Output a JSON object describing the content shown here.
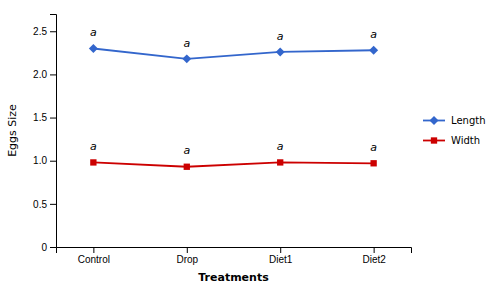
{
  "chart_data": {
    "type": "line",
    "categories": [
      "Control",
      "Drop",
      "Diet1",
      "Diet2"
    ],
    "series": [
      {
        "name": "Length",
        "color": "#3366cc",
        "marker": "diamond",
        "values": [
          2.3,
          2.18,
          2.26,
          2.28
        ]
      },
      {
        "name": "Width",
        "color": "#cc0000",
        "marker": "square",
        "values": [
          0.98,
          0.93,
          0.98,
          0.97
        ]
      }
    ],
    "annotations": [
      {
        "text": "a",
        "category": "Control",
        "y": 2.42
      },
      {
        "text": "a",
        "category": "Drop",
        "y": 2.3
      },
      {
        "text": "a",
        "category": "Diet1",
        "y": 2.38
      },
      {
        "text": "a",
        "category": "Diet2",
        "y": 2.4
      },
      {
        "text": "a",
        "category": "Control",
        "y": 1.1
      },
      {
        "text": "a",
        "category": "Drop",
        "y": 1.05
      },
      {
        "text": "a",
        "category": "Diet1",
        "y": 1.1
      },
      {
        "text": "a",
        "category": "Diet2",
        "y": 1.09
      }
    ],
    "xlabel": "Treatments",
    "ylabel": "Eggs Size",
    "ylim": [
      0,
      2.7
    ],
    "yticks": [
      0,
      0.5,
      {
        "value": 1.0,
        "label": "1.0"
      },
      1.5,
      {
        "value": 2.0,
        "label": "2.0"
      },
      2.5
    ],
    "legend": "right",
    "grid": false
  }
}
